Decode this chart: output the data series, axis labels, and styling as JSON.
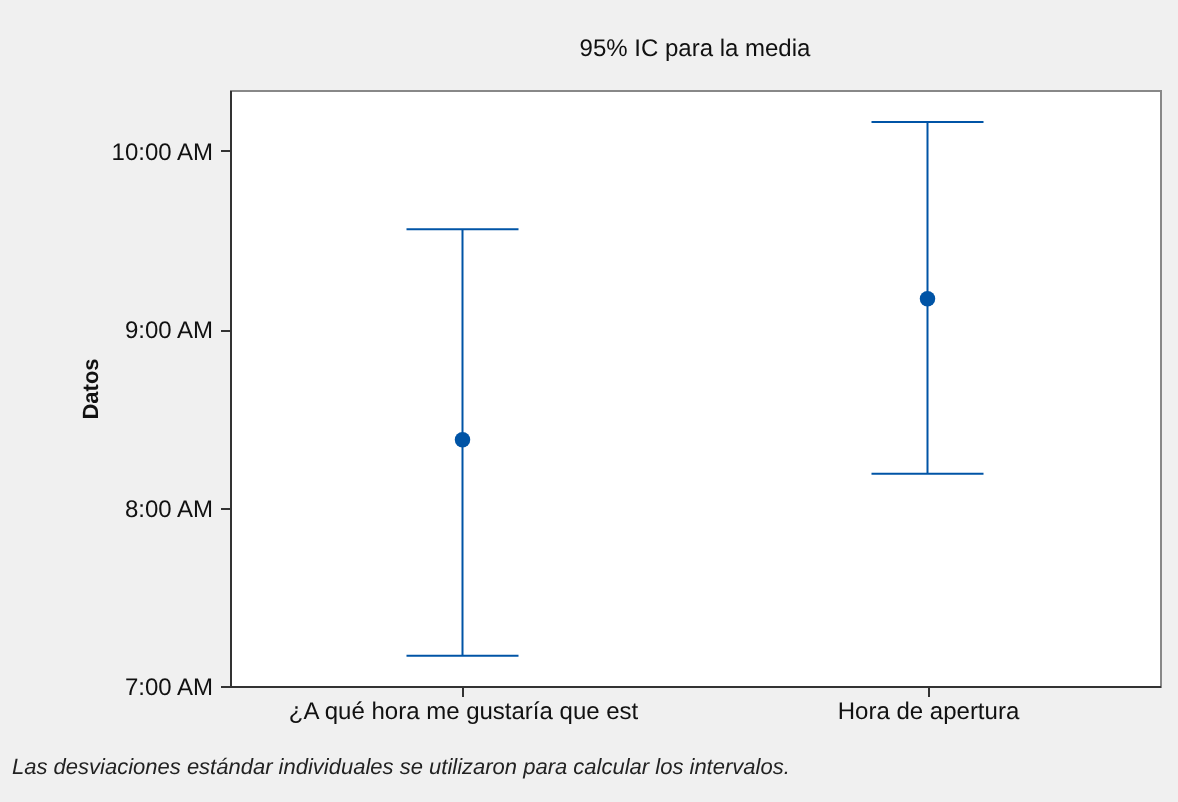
{
  "chart_data": {
    "type": "scatter",
    "title": "95% IC para la media",
    "ylabel": "Datos",
    "categories": [
      "¿A qué hora me gustaría que est",
      "Hora de apertura"
    ],
    "series": [
      {
        "color": "#0054a6",
        "values": [
          8.38,
          9.17
        ],
        "errors": [
          [
            7.17,
            9.56
          ],
          [
            8.19,
            10.16
          ]
        ]
      }
    ],
    "ylim": [
      7,
      10.34
    ],
    "yticks": [
      {
        "value": 7,
        "label": "7:00 AM"
      },
      {
        "value": 8,
        "label": "8:00 AM"
      },
      {
        "value": 9,
        "label": "9:00 AM"
      },
      {
        "value": 10,
        "label": "10:00 AM"
      }
    ],
    "marker": "circle",
    "grid": false,
    "annotations": [
      "Las desviaciones estándar individuales se utilizaron para calcular los intervalos."
    ]
  }
}
